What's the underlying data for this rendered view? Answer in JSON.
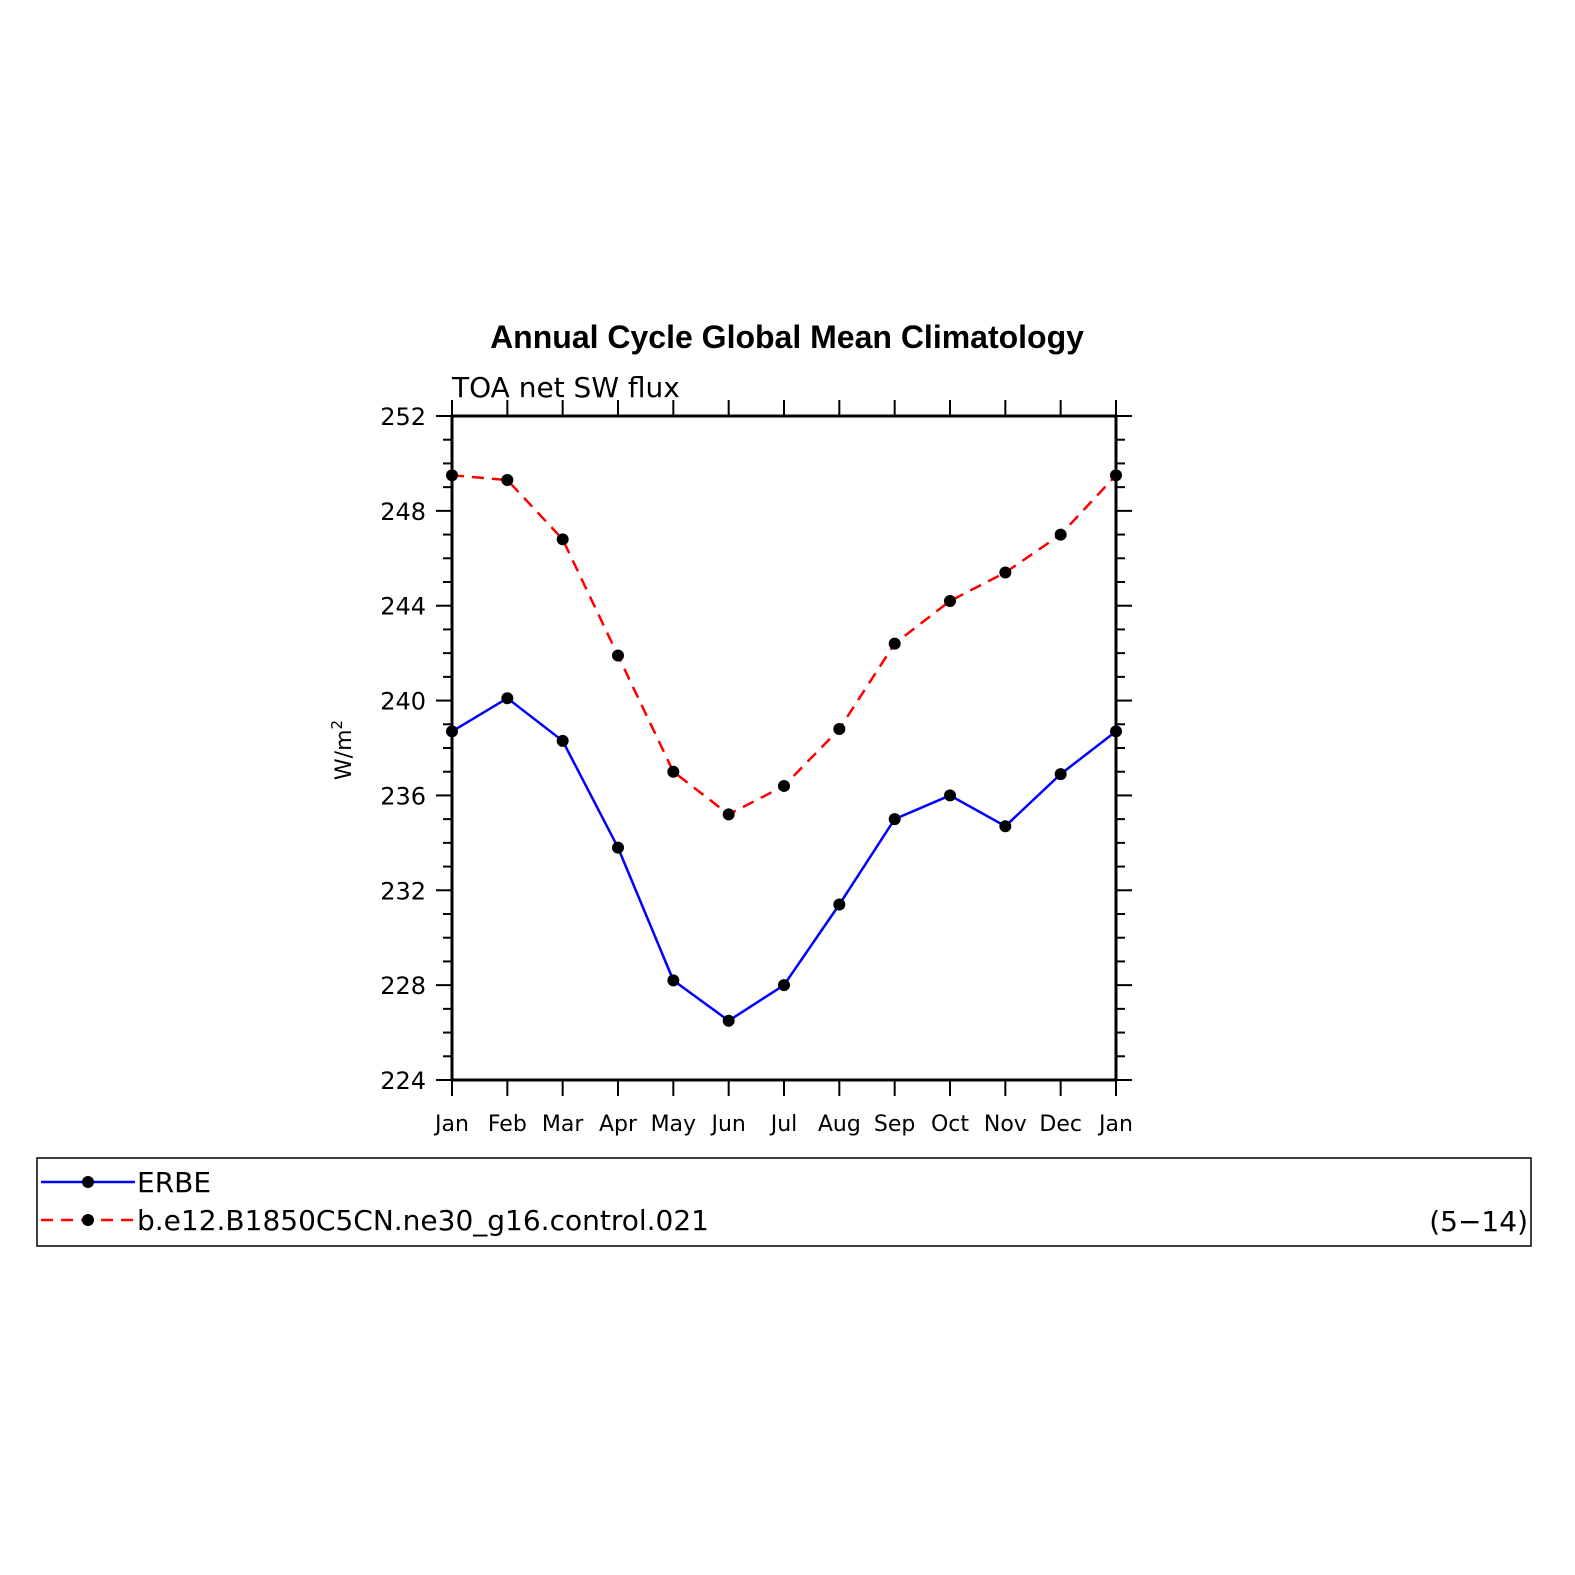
{
  "chart_data": {
    "type": "line",
    "title": "Annual Cycle Global Mean Climatology",
    "subtitle": "TOA net SW flux",
    "ylabel": "W/m",
    "ylabel_superscript": "2",
    "ylim": [
      224,
      252
    ],
    "yticks": [
      224,
      228,
      232,
      236,
      240,
      244,
      248,
      252
    ],
    "categories": [
      "Jan",
      "Feb",
      "Mar",
      "Apr",
      "May",
      "Jun",
      "Jul",
      "Aug",
      "Sep",
      "Oct",
      "Nov",
      "Dec",
      "Jan"
    ],
    "series": [
      {
        "name": "ERBE",
        "color": "#0000ff",
        "dash": "solid",
        "values": [
          238.7,
          240.1,
          238.3,
          233.8,
          228.2,
          226.5,
          228.0,
          231.4,
          235.0,
          236.0,
          234.7,
          236.9,
          238.7
        ]
      },
      {
        "name": "b.e12.B1850C5CN.ne30_g16.control.021",
        "color": "#ff0000",
        "dash": "dashed",
        "values": [
          249.5,
          249.3,
          246.8,
          241.9,
          237.0,
          235.2,
          236.4,
          238.8,
          242.4,
          244.2,
          245.4,
          247.0,
          249.5
        ]
      }
    ],
    "legend_placement": "bottom",
    "legend_note": "(5−14)",
    "grid": false
  }
}
